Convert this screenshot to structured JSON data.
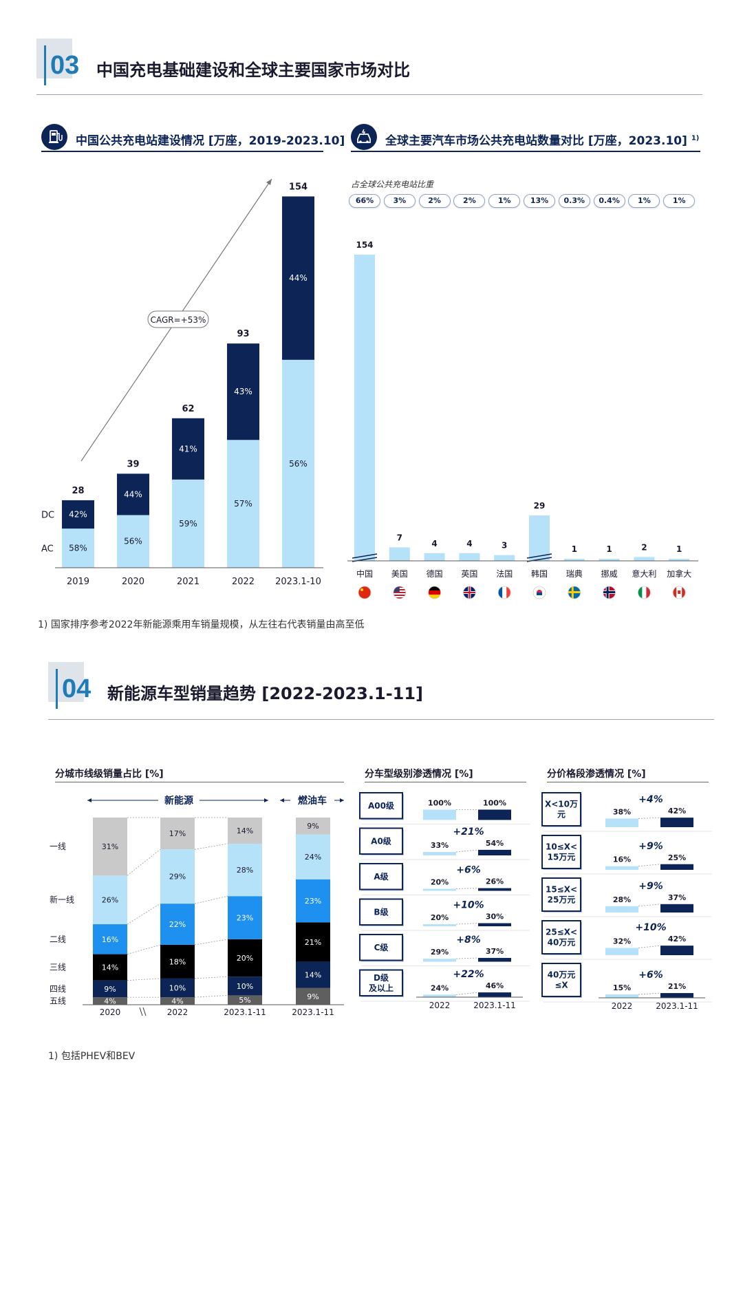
{
  "section3": {
    "number": "03",
    "title": "中国充电基础建设和全球主要国家市场对比",
    "left_title": "中国公共充电站建设情况 [万座，2019-2023.10]",
    "right_title": "全球主要汽车市场公共充电站数量对比 [万座，2023.10]",
    "right_title_sup": "1)",
    "share_label": "占全球公共充电站比重",
    "footnote": "1) 国家排序参考2022年新能源乘用车销量规模，从左往右代表销量由高至低"
  },
  "section4": {
    "number": "04",
    "title": "新能源车型销量趋势 [2022-2023.1-11]",
    "footnote": "1) 包括PHEV和BEV"
  },
  "colors": {
    "dark_navy": "#0d2456",
    "light_blue": "#b5e2f8",
    "bright_blue": "#1e90f0",
    "gray_light": "#c9c9c9",
    "black": "#000000",
    "dark_gray": "#5f5f5f",
    "accent": "#1f7ab8"
  },
  "chart_data": [
    {
      "id": "china_charging",
      "type": "bar",
      "stacked": true,
      "categories": [
        "2019",
        "2020",
        "2021",
        "2022",
        "2023.1-10"
      ],
      "totals": [
        28,
        39,
        62,
        93,
        154
      ],
      "series": [
        {
          "name": "AC",
          "shares": [
            "58%",
            "56%",
            "59%",
            "57%",
            "56%"
          ],
          "share_values": [
            58,
            56,
            59,
            57,
            56
          ],
          "color": "#b5e2f8"
        },
        {
          "name": "DC",
          "shares": [
            "42%",
            "44%",
            "41%",
            "43%",
            "44%"
          ],
          "share_values": [
            42,
            44,
            41,
            43,
            44
          ],
          "color": "#0d2456"
        }
      ],
      "annotation": "CAGR=+53%",
      "ylim": [
        0,
        160
      ]
    },
    {
      "id": "global_charging",
      "type": "bar",
      "categories": [
        "中国",
        "美国",
        "德国",
        "英国",
        "法国",
        "韩国",
        "瑞典",
        "挪威",
        "意大利",
        "加拿大"
      ],
      "values": [
        154,
        7,
        4,
        4,
        3,
        29,
        1,
        1,
        2,
        1
      ],
      "value_labels": [
        "154",
        "7",
        "4",
        "4",
        "3",
        "29",
        "1",
        "1",
        "2",
        "1"
      ],
      "shares": [
        "66%",
        "3%",
        "2%",
        "2%",
        "1%",
        "13%",
        "0.3%",
        "0.4%",
        "1%",
        "1%"
      ],
      "axis_breaks": [
        "中国",
        "韩国"
      ],
      "flags": [
        "cn",
        "us",
        "de",
        "gb",
        "fr",
        "kr",
        "se",
        "no",
        "it",
        "ca"
      ],
      "color": "#b5e2f8"
    },
    {
      "id": "city_tier_share",
      "type": "bar",
      "stacked": true,
      "title": "分城市线级销量占比 [%]",
      "categories": [
        "2020",
        "2022",
        "2023.1-11",
        "2023.1-11"
      ],
      "group_labels": [
        "新能源",
        "燃油车"
      ],
      "series": [
        {
          "name": "五线",
          "values": [
            4,
            4,
            5,
            9
          ],
          "labels": [
            "4%",
            "4%",
            "5%",
            "9%"
          ],
          "color": "#5f5f5f"
        },
        {
          "name": "四线",
          "values": [
            9,
            10,
            10,
            14
          ],
          "labels": [
            "9%",
            "10%",
            "10%",
            "14%"
          ],
          "color": "#0d2456"
        },
        {
          "name": "三线",
          "values": [
            14,
            18,
            20,
            21
          ],
          "labels": [
            "14%",
            "18%",
            "20%",
            "21%"
          ],
          "color": "#000000"
        },
        {
          "name": "二线",
          "values": [
            16,
            22,
            23,
            23
          ],
          "labels": [
            "16%",
            "22%",
            "23%",
            "23%"
          ],
          "color": "#1e90f0"
        },
        {
          "name": "新一线",
          "values": [
            26,
            29,
            28,
            24
          ],
          "labels": [
            "26%",
            "29%",
            "28%",
            "24%"
          ],
          "color": "#b5e2f8"
        },
        {
          "name": "一线",
          "values": [
            31,
            17,
            14,
            9
          ],
          "labels": [
            "31%",
            "17%",
            "14%",
            "9%"
          ],
          "color": "#c9c9c9"
        }
      ]
    },
    {
      "id": "segment_penetration",
      "type": "bar",
      "title": "分车型级别渗透情况 [%]",
      "x": [
        "2022",
        "2023.1-11"
      ],
      "rows": [
        {
          "label": "A00级",
          "v2022": 100,
          "v2023": 100,
          "l2022": "100%",
          "l2023": "100%",
          "delta": ""
        },
        {
          "label": "A0级",
          "v2022": 33,
          "v2023": 54,
          "l2022": "33%",
          "l2023": "54%",
          "delta": "+21%"
        },
        {
          "label": "A级",
          "v2022": 20,
          "v2023": 26,
          "l2022": "20%",
          "l2023": "26%",
          "delta": "+6%"
        },
        {
          "label": "B级",
          "v2022": 20,
          "v2023": 30,
          "l2022": "20%",
          "l2023": "30%",
          "delta": "+10%"
        },
        {
          "label": "C级",
          "v2022": 29,
          "v2023": 37,
          "l2022": "29%",
          "l2023": "37%",
          "delta": "+8%"
        },
        {
          "label": "D级\n及以上",
          "v2022": 24,
          "v2023": 46,
          "l2022": "24%",
          "l2023": "46%",
          "delta": "+22%"
        }
      ]
    },
    {
      "id": "price_penetration",
      "type": "bar",
      "title": "分价格段渗透情况 [%]",
      "x": [
        "2022",
        "2023.1-11"
      ],
      "rows": [
        {
          "label": "X<10万\n元",
          "v2022": 38,
          "v2023": 42,
          "l2022": "38%",
          "l2023": "42%",
          "delta": "+4%"
        },
        {
          "label": "10≤X<\n15万元",
          "v2022": 16,
          "v2023": 25,
          "l2022": "16%",
          "l2023": "25%",
          "delta": "+9%"
        },
        {
          "label": "15≤X<\n25万元",
          "v2022": 28,
          "v2023": 37,
          "l2022": "28%",
          "l2023": "37%",
          "delta": "+9%"
        },
        {
          "label": "25≤X<\n40万元",
          "v2022": 32,
          "v2023": 42,
          "l2022": "32%",
          "l2023": "42%",
          "delta": "+10%"
        },
        {
          "label": "40万元\n≤X",
          "v2022": 15,
          "v2023": 21,
          "l2022": "15%",
          "l2023": "21%",
          "delta": "+6%"
        }
      ]
    }
  ]
}
